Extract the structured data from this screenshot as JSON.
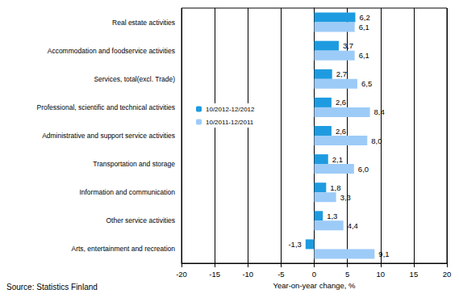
{
  "chart_data": {
    "type": "bar",
    "orientation": "horizontal",
    "categories": [
      "Real estate activities",
      "Accommodation and foodservice activities",
      "Services, total(excl. Trade)",
      "Professional, scientific and technical activities",
      "Administrative and support service activities",
      "Transportation and storage",
      "Information and communication",
      "Other service activities",
      "Arts, entertainment and recreation"
    ],
    "series": [
      {
        "name": "10/2012-12/2012",
        "color": "#1e9be0",
        "values": [
          6.2,
          3.7,
          2.7,
          2.6,
          2.6,
          2.1,
          1.8,
          1.3,
          -1.3
        ],
        "value_labels": [
          "6,2",
          "3,7",
          "2,7",
          "2,6",
          "2,6",
          "2,1",
          "1,8",
          "1,3",
          "-1,3"
        ]
      },
      {
        "name": "10/2011-12/2011",
        "color": "#9dcbf7",
        "values": [
          6.1,
          6.1,
          6.5,
          8.4,
          8.0,
          6.0,
          3.3,
          4.4,
          9.1
        ],
        "value_labels": [
          "6,1",
          "6,1",
          "6,5",
          "8,4",
          "8,0",
          "6,0",
          "3,3",
          "4,4",
          "9,1"
        ]
      }
    ],
    "xlabel": "Year-on-year change, %",
    "xlim": [
      -20,
      20
    ],
    "xticks": [
      -20,
      -15,
      -10,
      -5,
      0,
      5,
      10,
      15,
      20
    ],
    "grid": true,
    "legend": "left",
    "data_labels": true,
    "source": "Source: Statistics Finland"
  }
}
